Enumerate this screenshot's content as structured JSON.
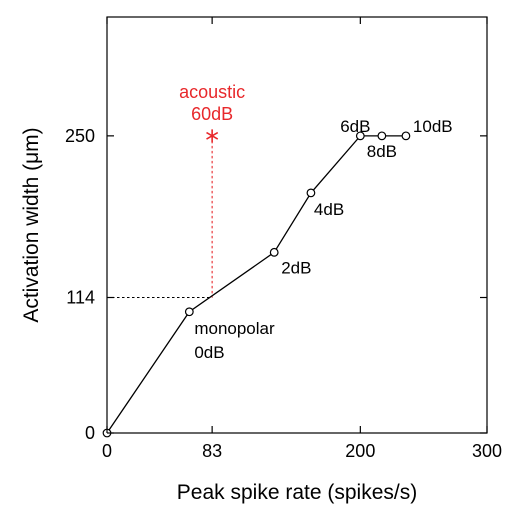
{
  "chart_data": {
    "type": "line",
    "xlabel": "Peak spike rate (spikes/s)",
    "ylabel": "Activation width (μm)",
    "xlim": [
      0,
      300
    ],
    "ylim": [
      0,
      350
    ],
    "x_ticks": [
      0,
      83,
      200,
      300
    ],
    "y_ticks": [
      0,
      114,
      250
    ],
    "grid": false,
    "series": [
      {
        "points": [
          {
            "x": 0,
            "y": 0,
            "label": ""
          },
          {
            "x": 65,
            "y": 102,
            "label": "monopolar\n0dB"
          },
          {
            "x": 132,
            "y": 152,
            "label": "2dB"
          },
          {
            "x": 161,
            "y": 202,
            "label": "4dB"
          },
          {
            "x": 200,
            "y": 250,
            "label": "6dB"
          },
          {
            "x": 217,
            "y": 250,
            "label": "8dB"
          },
          {
            "x": 236,
            "y": 250,
            "label": "10dB"
          }
        ],
        "color": "#000000",
        "marker": "open-circle"
      }
    ],
    "annotations": [
      {
        "label_lines": [
          "acoustic",
          "60dB"
        ],
        "x": 83,
        "y": 250,
        "marker": "asterisk",
        "color": "#e8282b",
        "guide_to_y": 114,
        "guide_color": "#e8282b"
      },
      {
        "kind": "horizontal-guide",
        "y": 114,
        "from_x": 0,
        "to_x": 83,
        "color": "#000000"
      }
    ]
  }
}
